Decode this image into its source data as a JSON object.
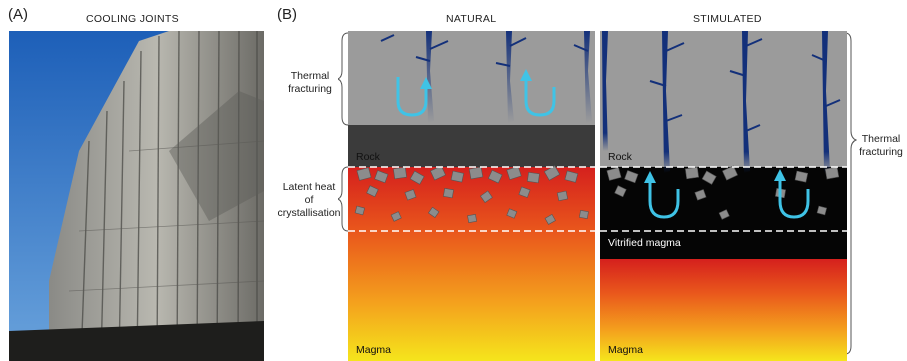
{
  "panel_a": {
    "letter": "(A)",
    "title": "COOLING JOINTS"
  },
  "panel_b": {
    "letter": "(B)",
    "natural": {
      "title": "NATURAL",
      "rock_label": "Rock",
      "magma_label": "Magma"
    },
    "stimulated": {
      "title": "STIMULATED",
      "rock_label": "Rock",
      "vitrified_label": "Vitrified magma",
      "magma_label": "Magma"
    },
    "left_labels": {
      "thermal_fracturing": [
        "Thermal",
        "fracturing"
      ],
      "latent_heat": [
        "Latent heat",
        "of",
        "crystallisation"
      ]
    },
    "right_labels": {
      "thermal_fracturing": [
        "Thermal",
        "fracturing"
      ]
    }
  },
  "colors": {
    "rock_grey": "#9a9a9a",
    "rock_dark": "#3a3a3a",
    "fracture_blue": "#1a3a8a",
    "arrow_cyan": "#3fc3e6",
    "magma_top": "#d8261f",
    "magma_bottom": "#f3e21d"
  }
}
